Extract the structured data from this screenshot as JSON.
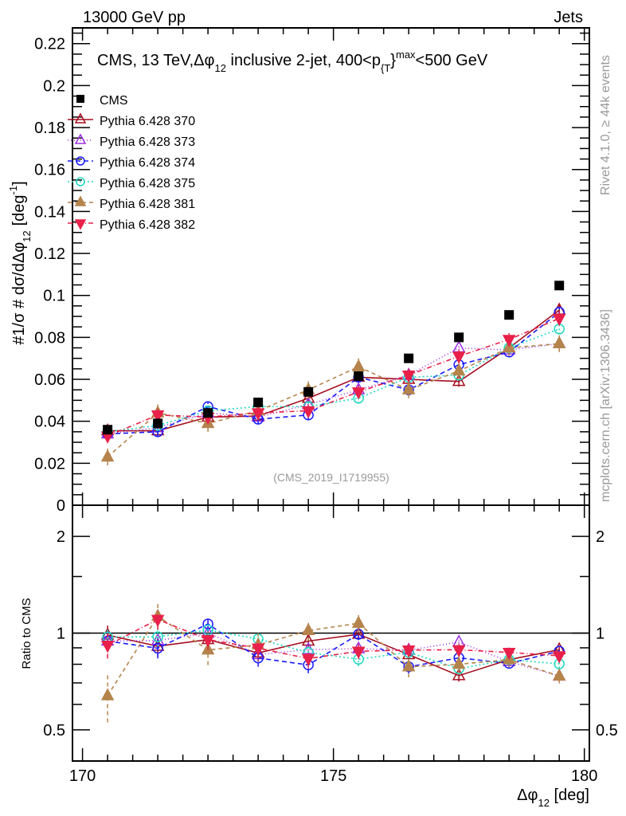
{
  "header": {
    "left": "13000 GeV pp",
    "right": "Jets"
  },
  "side": {
    "rivet": "Rivet 4.1.0, ≥ 44k events",
    "mcplots": "mcplots.cern.ch [arXiv:1306.3436]"
  },
  "chart_data": {
    "type": "line",
    "title": "CMS, 13 TeV,Δφ",
    "title_sub": "12",
    "title_rest": " inclusive 2-jet, 400<p",
    "title_sub2": "{T",
    "title_rest2": "}",
    "title_sup": "max",
    "title_end": "<500 GeV",
    "ylabel": "#1/σ # dσ/dΔφ",
    "ylabel_sub": "12",
    "ylabel_unit": "[deg",
    "ylabel_sup": "-1",
    "ylabel_close": "]",
    "ratio_ylabel": "Ratio to CMS",
    "xlabel": "Δφ",
    "xlabel_sub": "12",
    "xlabel_unit": " [deg]",
    "analysis": "(CMS_2019_I1719955)",
    "xlim": [
      169.8,
      180.1
    ],
    "ylim": [
      0,
      0.2275
    ],
    "ratio_ylim": [
      0.4,
      2.5
    ],
    "ratio_scale": "log",
    "x": [
      170.5,
      171.5,
      172.5,
      173.5,
      174.5,
      175.5,
      176.5,
      177.5,
      178.5,
      179.5
    ],
    "xticks": [
      "170",
      "175",
      "180"
    ],
    "yticks": [
      "0",
      "0.02",
      "0.04",
      "0.06",
      "0.08",
      "0.1",
      "0.12",
      "0.14",
      "0.16",
      "0.18",
      "0.2",
      "0.22"
    ],
    "ratio_yticks": [
      "0.5",
      "1",
      "2"
    ],
    "legend_position": "top-left",
    "data": {
      "name": "CMS",
      "values": [
        0.036,
        0.039,
        0.044,
        0.049,
        0.054,
        0.0615,
        0.07,
        0.08,
        0.0907,
        0.1047
      ]
    },
    "series": [
      {
        "name": "Pythia 6.428 370",
        "color": "#a50d1e",
        "marker": "open-triangle",
        "dash": "",
        "err": 0.0025,
        "values": [
          0.0355,
          0.0355,
          0.042,
          0.0425,
          0.051,
          0.061,
          0.06,
          0.059,
          0.075,
          0.093
        ]
      },
      {
        "name": "Pythia 6.428 373",
        "color": "#9b30e0",
        "marker": "open-triangle",
        "dash": "1,3",
        "err": 0.0025,
        "values": [
          0.034,
          0.037,
          0.044,
          0.042,
          0.048,
          0.055,
          0.062,
          0.075,
          0.074,
          0.077
        ]
      },
      {
        "name": "Pythia 6.428 374",
        "color": "#1a1aff",
        "marker": "open-circle",
        "dash": "6,4",
        "err": 0.0025,
        "values": [
          0.034,
          0.035,
          0.047,
          0.041,
          0.043,
          0.061,
          0.055,
          0.067,
          0.073,
          0.092
        ]
      },
      {
        "name": "Pythia 6.428 375",
        "color": "#20d8c0",
        "marker": "open-circle",
        "dash": "2,3",
        "err": 0.0025,
        "values": [
          0.035,
          0.038,
          0.045,
          0.047,
          0.047,
          0.051,
          0.061,
          0.062,
          0.075,
          0.084
        ]
      },
      {
        "name": "Pythia 6.428 381",
        "color": "#b5844c",
        "marker": "filled-triangle",
        "dash": "5,4",
        "err": 0.004,
        "values": [
          0.023,
          0.044,
          0.039,
          0.045,
          0.055,
          0.066,
          0.055,
          0.064,
          0.075,
          0.077
        ]
      },
      {
        "name": "Pythia 6.428 382",
        "color": "#e8204a",
        "marker": "filled-inverted-triangle",
        "dash": "6,3,1,3",
        "err": 0.003,
        "values": [
          0.033,
          0.043,
          0.042,
          0.044,
          0.045,
          0.054,
          0.062,
          0.071,
          0.079,
          0.089
        ]
      }
    ]
  }
}
